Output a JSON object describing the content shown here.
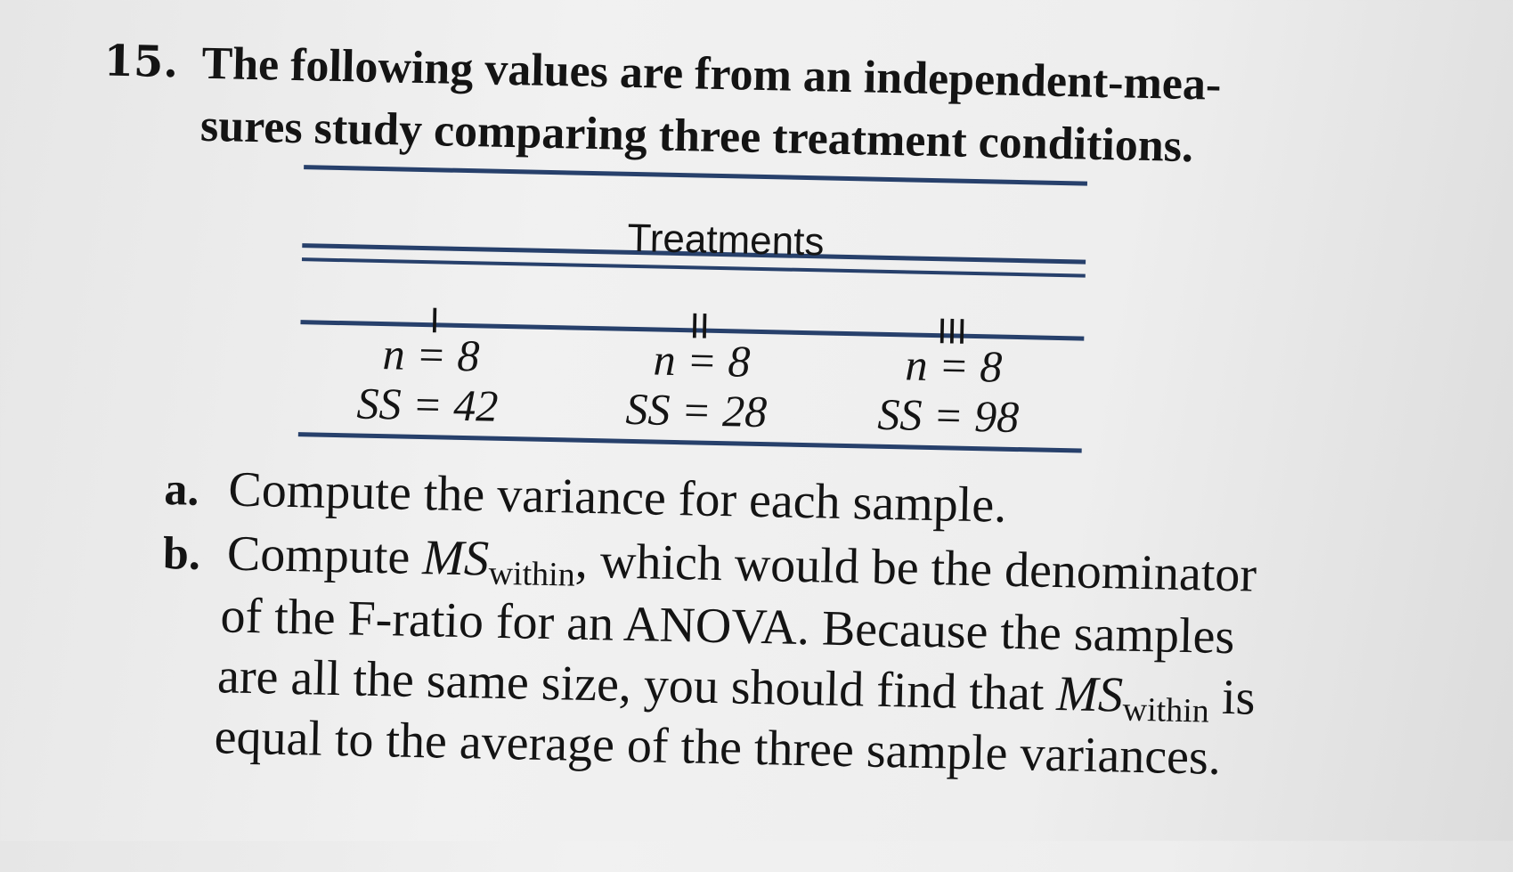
{
  "problem": {
    "number": "15.",
    "intro_line1": "The following values are from an independent-mea-",
    "intro_line2": "sures study comparing three treatment conditions."
  },
  "table": {
    "header": "Treatments",
    "columns": [
      {
        "label": "I",
        "n": "n = 8",
        "ss": "SS = 42"
      },
      {
        "label": "II",
        "n": "n = 8",
        "ss": "SS = 28"
      },
      {
        "label": "III",
        "n": "n = 8",
        "ss": "SS = 98"
      }
    ]
  },
  "parts": {
    "a_label": "a.",
    "a_text": "Compute the variance for each sample.",
    "b_label": "b.",
    "b_line1_pre": "Compute ",
    "b_ms": "MS",
    "b_sub": "within",
    "b_line1_post": ", which would be the denominator",
    "b_line2": "of the F-ratio for an ANOVA. Because the samples",
    "b_line3_pre": "are all the same size, you should find that ",
    "b_line3_ms": "MS",
    "b_line3_sub": "within",
    "b_line3_post": " is",
    "b_line4": "equal to the average of the three sample variances."
  }
}
